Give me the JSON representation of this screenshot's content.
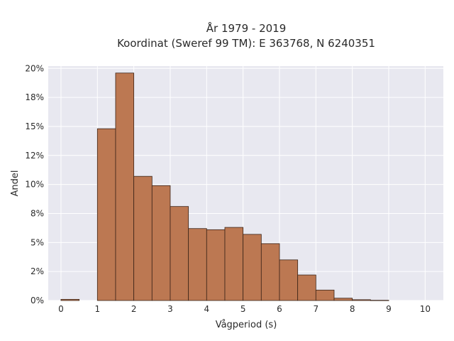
{
  "chart_data": {
    "type": "bar",
    "title": "År 1979 - 2019",
    "subtitle": "Koordinat (Sweref 99 TM): E 363768, N 6240351",
    "xlabel": "Vågperiod (s)",
    "ylabel": "Andel",
    "xlim": [
      -0.35,
      10.5
    ],
    "ylim": [
      0,
      20.2
    ],
    "x_ticks": [
      "0",
      "1",
      "2",
      "3",
      "4",
      "5",
      "6",
      "7",
      "8",
      "9",
      "10"
    ],
    "y_ticks": [
      "0%",
      "2%",
      "5%",
      "8%",
      "10%",
      "12%",
      "15%",
      "18%",
      "20%"
    ],
    "y_tick_values": [
      0,
      2.5,
      5,
      7.5,
      10,
      12.5,
      15,
      17.5,
      20
    ],
    "grid": true,
    "bin_width": 0.5,
    "bins": [
      {
        "start": 0.0,
        "value": 0.1
      },
      {
        "start": 0.5,
        "value": 0.0
      },
      {
        "start": 1.0,
        "value": 14.8
      },
      {
        "start": 1.5,
        "value": 19.6
      },
      {
        "start": 2.0,
        "value": 10.7
      },
      {
        "start": 2.5,
        "value": 9.9
      },
      {
        "start": 3.0,
        "value": 8.1
      },
      {
        "start": 3.5,
        "value": 6.2
      },
      {
        "start": 4.0,
        "value": 6.1
      },
      {
        "start": 4.5,
        "value": 6.3
      },
      {
        "start": 5.0,
        "value": 5.7
      },
      {
        "start": 5.5,
        "value": 4.9
      },
      {
        "start": 6.0,
        "value": 3.5
      },
      {
        "start": 6.5,
        "value": 2.2
      },
      {
        "start": 7.0,
        "value": 0.9
      },
      {
        "start": 7.5,
        "value": 0.2
      },
      {
        "start": 8.0,
        "value": 0.07
      },
      {
        "start": 8.5,
        "value": 0.02
      }
    ],
    "colors": {
      "bar_fill": "#bc7852",
      "bar_edge": "#3b2418",
      "plot_bg": "#e8e8f0",
      "grid": "#ffffff"
    }
  }
}
